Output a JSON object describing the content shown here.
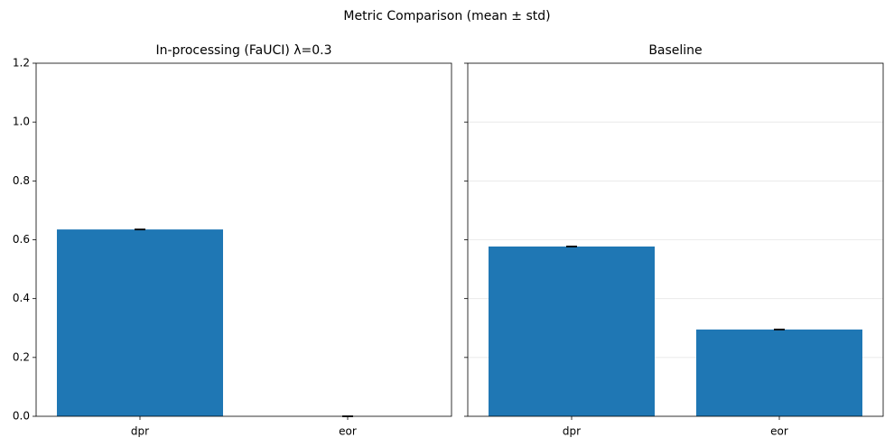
{
  "title": "Metric Comparison (mean ± std)",
  "chart_data": [
    {
      "type": "bar",
      "title": "In-processing (FaUCI) λ=0.3",
      "categories": [
        "dpr",
        "eor"
      ],
      "values": [
        0.635,
        0.0
      ],
      "errors": [
        0.001,
        0.001
      ],
      "color": "#1f77b4",
      "ylim": [
        0,
        1.2
      ],
      "yticks": [
        0.0,
        0.2,
        0.4,
        0.6,
        0.8,
        1.0,
        1.2
      ],
      "ytick_labels": [
        {
          "value": 0.0,
          "label": "0.0"
        },
        {
          "value": 0.2,
          "label": "0.2"
        },
        {
          "value": 0.4,
          "label": "0.4"
        },
        {
          "value": 0.6,
          "label": "0.6"
        },
        {
          "value": 0.8,
          "label": "0.8"
        },
        {
          "value": 1.0,
          "label": "1.0"
        },
        {
          "value": 1.2,
          "label": "1.2"
        }
      ],
      "grid": false
    },
    {
      "type": "bar",
      "title": "Baseline",
      "categories": [
        "dpr",
        "eor"
      ],
      "values": [
        0.577,
        0.295
      ],
      "errors": [
        0.001,
        0.001
      ],
      "color": "#1f77b4",
      "ylim": [
        0,
        1.2
      ],
      "yticks": [
        0.0,
        0.2,
        0.4,
        0.6,
        0.8,
        1.0,
        1.2
      ],
      "grid": true
    }
  ]
}
